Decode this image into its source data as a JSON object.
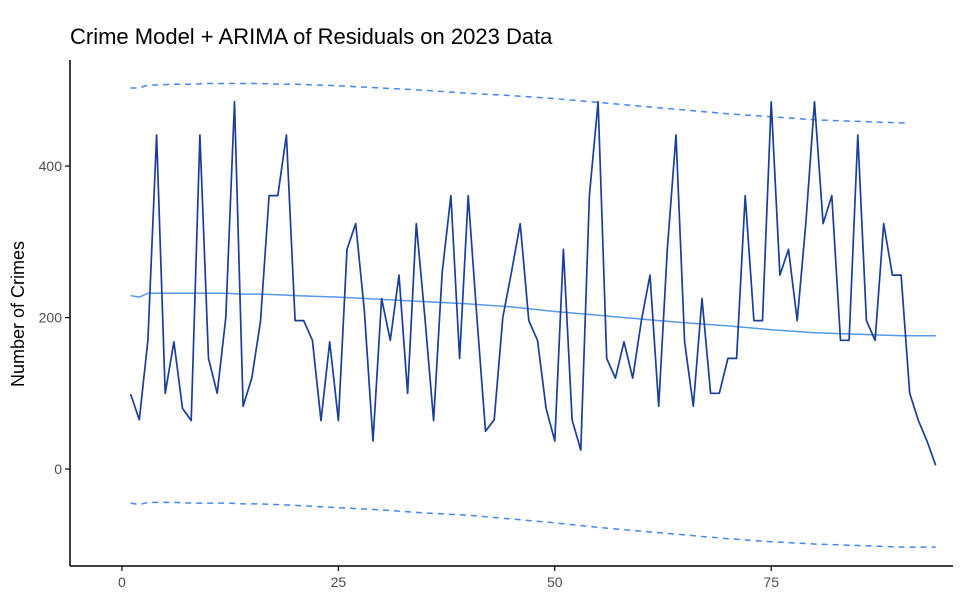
{
  "chart_data": {
    "type": "line",
    "title": "Crime Model + ARIMA of Residuals on 2023 Data",
    "xlabel": "",
    "ylabel": "Number of Crimes",
    "xlim": [
      -6,
      96
    ],
    "ylim": [
      -128,
      540
    ],
    "x_ticks": [
      0,
      25,
      50,
      75
    ],
    "y_ticks": [
      0,
      200,
      400
    ],
    "grid": false,
    "legend": "none",
    "colors": {
      "actual": "#1a3f99",
      "forecast": "#5599ee",
      "interval": "#4488ee",
      "axis": "#000000",
      "tick_text": "#4d4d4d"
    },
    "series": [
      {
        "key": "actual",
        "style": "solid",
        "x": [
          1,
          2,
          3,
          4,
          5,
          6,
          7,
          8,
          9,
          10,
          11,
          12,
          13,
          14,
          15,
          16,
          17,
          18,
          19,
          20,
          21,
          22,
          23,
          24,
          25,
          26,
          27,
          28,
          29,
          30,
          31,
          32,
          33,
          34,
          35,
          36,
          37,
          38,
          39,
          40,
          41,
          42,
          43,
          44,
          45,
          46,
          47,
          48,
          49,
          50,
          51,
          52,
          53,
          54,
          55,
          56,
          57,
          58,
          59,
          60,
          61,
          62,
          63,
          64,
          65,
          66,
          67,
          68,
          69,
          70,
          71,
          72,
          73,
          74,
          75,
          76,
          77,
          78,
          79,
          80,
          81,
          82,
          83,
          84,
          85,
          86,
          87,
          88,
          89,
          90,
          91,
          92,
          93,
          94
        ],
        "values": [
          99,
          65,
          170,
          441,
          100,
          168,
          80,
          64,
          441,
          146,
          100,
          200,
          485,
          83,
          120,
          195,
          361,
          361,
          441,
          196,
          196,
          170,
          64,
          168,
          64,
          290,
          324,
          210,
          37,
          225,
          170,
          256,
          100,
          324,
          200,
          64,
          260,
          361,
          146,
          361,
          200,
          50,
          65,
          200,
          260,
          324,
          196,
          170,
          80,
          37,
          290,
          65,
          25,
          361,
          485,
          146,
          120,
          168,
          120,
          196,
          256,
          83,
          290,
          441,
          168,
          83,
          225,
          100,
          100,
          146,
          146,
          361,
          196,
          196,
          485,
          256,
          290,
          196,
          324,
          485,
          324,
          361,
          170,
          170,
          441,
          196,
          170,
          324,
          256,
          256,
          100,
          64,
          37,
          5
        ]
      },
      {
        "key": "forecast",
        "style": "solid",
        "x": [
          1,
          2,
          3,
          4,
          6,
          8,
          10,
          12,
          14,
          16,
          18,
          20,
          25,
          30,
          35,
          40,
          45,
          50,
          55,
          60,
          65,
          70,
          75,
          80,
          85,
          90,
          94
        ],
        "values": [
          229,
          227,
          232,
          232,
          232,
          232,
          232,
          232,
          231,
          231,
          230,
          229,
          227,
          224,
          221,
          218,
          214,
          208,
          203,
          198,
          193,
          189,
          184,
          180,
          178,
          176,
          176
        ]
      },
      {
        "key": "upper",
        "style": "dashed",
        "x": [
          1,
          2,
          3,
          4,
          6,
          8,
          10,
          12,
          14,
          16,
          18,
          20,
          25,
          30,
          35,
          40,
          45,
          50,
          55,
          60,
          65,
          70,
          75,
          80,
          85,
          90,
          91
        ],
        "values": [
          503,
          503,
          507,
          507,
          508,
          508,
          509,
          509,
          509,
          509,
          508,
          508,
          506,
          503,
          500,
          496,
          493,
          489,
          484,
          479,
          474,
          469,
          465,
          461,
          459,
          457,
          457
        ]
      },
      {
        "key": "lower",
        "style": "dashed",
        "x": [
          1,
          2,
          3,
          4,
          6,
          8,
          10,
          12,
          14,
          16,
          18,
          20,
          25,
          30,
          35,
          40,
          45,
          50,
          55,
          60,
          65,
          70,
          75,
          80,
          85,
          90,
          94
        ],
        "values": [
          -45,
          -47,
          -44,
          -44,
          -44,
          -45,
          -45,
          -45,
          -46,
          -46,
          -47,
          -48,
          -51,
          -54,
          -58,
          -61,
          -66,
          -71,
          -77,
          -82,
          -87,
          -92,
          -96,
          -99,
          -101,
          -103,
          -103
        ]
      }
    ]
  }
}
